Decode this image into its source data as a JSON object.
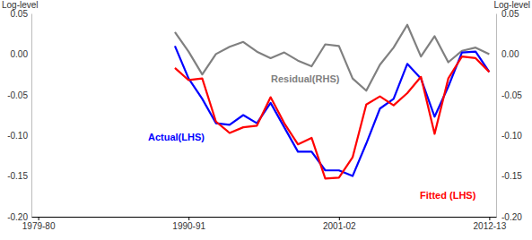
{
  "chart_data": {
    "type": "line",
    "y_label": "Log-level",
    "y2_label": "Log-level",
    "categories": [
      "1979-80",
      null,
      null,
      null,
      null,
      null,
      null,
      null,
      null,
      null,
      null,
      "1990-91",
      null,
      null,
      null,
      null,
      null,
      null,
      null,
      null,
      null,
      null,
      "2001-02",
      null,
      null,
      null,
      null,
      null,
      null,
      null,
      null,
      null,
      null,
      "2012-13"
    ],
    "series": [
      {
        "name": "Actual(LHS)",
        "color": "#0000ff",
        "values": [
          null,
          null,
          null,
          null,
          null,
          null,
          null,
          null,
          null,
          null,
          0.01,
          -0.03,
          -0.055,
          -0.085,
          -0.087,
          -0.075,
          -0.085,
          -0.06,
          -0.09,
          -0.12,
          -0.12,
          -0.143,
          -0.143,
          -0.15,
          -0.11,
          -0.067,
          -0.055,
          -0.012,
          -0.03,
          -0.077,
          -0.04,
          0.002,
          0.003,
          -0.022
        ]
      },
      {
        "name": "Fitted (LHS)",
        "color": "#ff0000",
        "values": [
          null,
          null,
          null,
          null,
          null,
          null,
          null,
          null,
          null,
          null,
          -0.017,
          -0.032,
          -0.03,
          -0.083,
          -0.097,
          -0.09,
          -0.088,
          -0.053,
          -0.085,
          -0.111,
          -0.103,
          -0.153,
          -0.152,
          -0.127,
          -0.062,
          -0.052,
          -0.063,
          -0.048,
          -0.028,
          -0.098,
          -0.03,
          -0.003,
          -0.005,
          -0.022
        ]
      },
      {
        "name": "Residual(RHS)",
        "color": "#808080",
        "axis": "y2",
        "values": [
          null,
          null,
          null,
          null,
          null,
          null,
          null,
          null,
          null,
          null,
          0.027,
          0.003,
          -0.025,
          0,
          0.009,
          0.015,
          0.003,
          -0.005,
          0.002,
          -0.008,
          -0.015,
          0.012,
          0.01,
          -0.03,
          -0.045,
          -0.013,
          0.008,
          0.036,
          -0.003,
          0.022,
          -0.01,
          0.004,
          0.008,
          0
        ]
      }
    ],
    "ylim": [
      -0.2,
      0.05
    ],
    "yticks": [
      0.05,
      {
        "value": 0,
        "label": "0.00"
      },
      -0.05,
      {
        "value": -0.1,
        "label": "-0.10"
      },
      -0.15,
      {
        "value": -0.2,
        "label": "-0.20"
      }
    ],
    "y2lim": [
      -0.2,
      0.05
    ],
    "y2ticks": [
      0.05,
      {
        "value": 0,
        "label": "0.00"
      },
      -0.05,
      {
        "value": -0.1,
        "label": "-0.10"
      },
      -0.15,
      {
        "value": -0.2,
        "label": "-0.20"
      }
    ],
    "grid": false
  }
}
